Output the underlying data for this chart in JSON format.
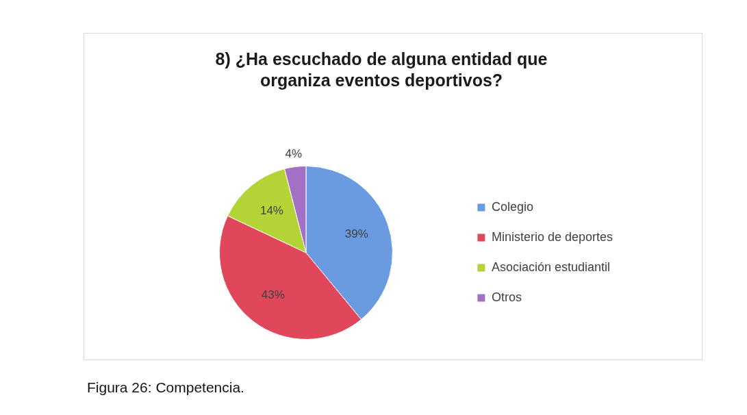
{
  "chart_data": {
    "type": "pie",
    "title": "8) ¿Ha escuchado de alguna entidad que organiza eventos deportivos?",
    "categories": [
      "Colegio",
      "Ministerio de deportes",
      "Asociación estudiantil",
      "Otros"
    ],
    "values": [
      39,
      43,
      14,
      4
    ],
    "colors": [
      "#6a9be0",
      "#e0475a",
      "#b3d336",
      "#a470c6"
    ],
    "value_labels": [
      "39%",
      "43%",
      "14%",
      "4%"
    ],
    "legend": "right",
    "annotations": [
      "Figura 26: Competencia."
    ]
  }
}
